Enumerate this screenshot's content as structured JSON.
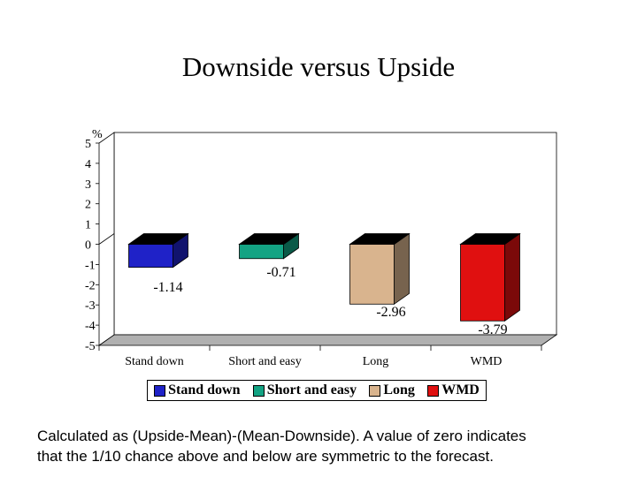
{
  "title": "Downside versus Upside",
  "footnote": {
    "line1": "Calculated as (Upside-Mean)-(Mean-Downside). A value of zero indicates",
    "line2": "that the 1/10 chance above and below are symmetric to the forecast."
  },
  "chart_data": {
    "type": "bar",
    "categories": [
      "Stand down",
      "Short and easy",
      "Long",
      "WMD"
    ],
    "values": [
      -1.14,
      -0.71,
      -2.96,
      -3.79
    ],
    "value_labels": [
      "-1.14",
      "-0.71",
      "-2.96",
      "-3.79"
    ],
    "y_unit_label": "%",
    "ylim": [
      -5,
      5
    ],
    "yticks": [
      "5",
      "4",
      "3",
      "2",
      "1",
      "0",
      "-1",
      "-2",
      "-3",
      "-4",
      "-5"
    ],
    "legend": [
      {
        "label": "Stand down",
        "color": "#1f22c8"
      },
      {
        "label": "Short and easy",
        "color": "#13a383"
      },
      {
        "label": "Long",
        "color": "#d9b48e"
      },
      {
        "label": "WMD",
        "color": "#e01010"
      }
    ],
    "bar_colors": [
      "#1f22c8",
      "#13a383",
      "#d9b48e",
      "#e01010"
    ],
    "top_face_color": "#000000",
    "floor_color": "#b0b0b0",
    "legend_placement": "bottom",
    "style": "3d",
    "grid": false
  }
}
